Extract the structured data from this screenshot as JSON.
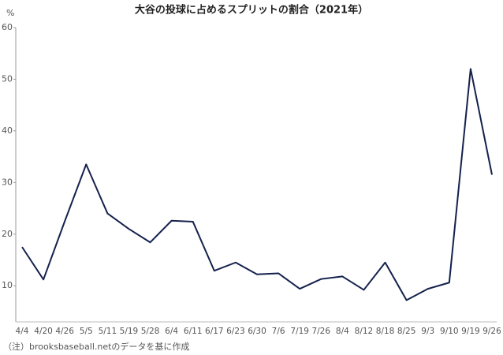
{
  "chart_data": {
    "type": "line",
    "title": "大谷の投球に占めるスプリットの割合（2021年）",
    "y_label": "%",
    "note": "（注）brooksbaseball.netのデータを基に作成",
    "categories": [
      "4/4",
      "4/20",
      "4/26",
      "5/5",
      "5/11",
      "5/19",
      "5/28",
      "6/4",
      "6/11",
      "6/17",
      "6/23",
      "6/30",
      "7/6",
      "7/19",
      "7/26",
      "8/4",
      "8/12",
      "8/18",
      "8/25",
      "9/3",
      "9/10",
      "9/19",
      "9/26"
    ],
    "series": [
      {
        "color": "#14214d",
        "values": [
          17.5,
          11.2,
          22.5,
          33.5,
          24,
          21,
          18.4,
          22.6,
          22.4,
          12.9,
          14.5,
          12.2,
          12.4,
          9.4,
          11.3,
          11.8,
          9.2,
          14.5,
          7.2,
          9.4,
          10.6,
          52,
          31.5
        ]
      }
    ],
    "ylim": [
      3,
      60
    ],
    "yticks": [
      10,
      20,
      30,
      40,
      50,
      60
    ],
    "grid": false
  }
}
